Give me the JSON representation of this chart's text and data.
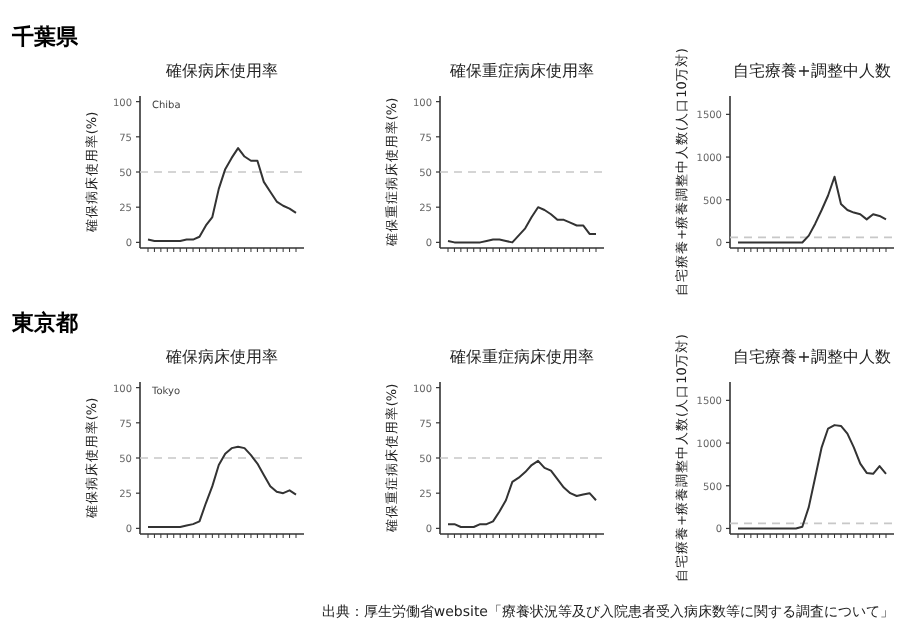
{
  "chart_data": [
    {
      "type": "line",
      "title": "千葉県",
      "subtitle": "確保病床使用率",
      "ylabel": "確保病床使用率(%)",
      "annotations": [
        "Chiba"
      ],
      "categories": [
        null,
        null,
        null,
        null,
        null,
        null,
        null,
        null,
        null,
        null,
        null,
        null,
        null,
        null,
        null,
        null,
        null,
        null,
        null,
        null,
        null,
        null,
        null,
        null
      ],
      "series": [
        {
          "color": "#333333",
          "values": [
            2,
            1,
            1,
            1,
            1,
            1,
            2,
            2,
            4,
            12,
            18,
            38,
            52,
            60,
            67,
            61,
            58,
            58,
            43,
            36,
            29,
            26,
            24,
            21
          ]
        }
      ],
      "ylim": [
        -4,
        104
      ],
      "yticks": [
        0,
        25,
        50,
        75,
        100
      ],
      "ref_lines": [
        {
          "axis": "y",
          "value": 50,
          "color": "#c8c8c8",
          "line_style": "dashed"
        }
      ],
      "grid": false,
      "marker": "none",
      "line_style": "solid"
    },
    {
      "type": "line",
      "subtitle": "確保重症病床使用率",
      "ylabel": "確保重症病床使用率(%)",
      "categories": [
        null,
        null,
        null,
        null,
        null,
        null,
        null,
        null,
        null,
        null,
        null,
        null,
        null,
        null,
        null,
        null,
        null,
        null,
        null,
        null,
        null,
        null,
        null,
        null
      ],
      "series": [
        {
          "color": "#333333",
          "values": [
            1,
            0,
            0,
            0,
            0,
            0,
            1,
            2,
            2,
            1,
            0,
            5,
            10,
            18,
            25,
            23,
            20,
            16,
            16,
            14,
            12,
            12,
            6,
            6
          ]
        }
      ],
      "ylim": [
        -4,
        104
      ],
      "yticks": [
        0,
        25,
        50,
        75,
        100
      ],
      "ref_lines": [
        {
          "axis": "y",
          "value": 50,
          "color": "#c8c8c8",
          "line_style": "dashed"
        }
      ],
      "grid": false,
      "marker": "none",
      "line_style": "solid"
    },
    {
      "type": "line",
      "subtitle": "自宅療養+調整中人数",
      "ylabel": "自宅療養+療養調整中人数(人口10万対)",
      "categories": [
        null,
        null,
        null,
        null,
        null,
        null,
        null,
        null,
        null,
        null,
        null,
        null,
        null,
        null,
        null,
        null,
        null,
        null,
        null,
        null,
        null,
        null,
        null,
        null
      ],
      "series": [
        {
          "color": "#333333",
          "values": [
            0,
            0,
            0,
            0,
            0,
            0,
            0,
            0,
            0,
            0,
            0,
            80,
            220,
            380,
            550,
            770,
            450,
            380,
            350,
            330,
            270,
            330,
            310,
            270
          ]
        }
      ],
      "ylim": [
        -65,
        1715
      ],
      "yticks": [
        0,
        500,
        1000,
        1500
      ],
      "ref_lines": [
        {
          "axis": "y",
          "value": 60,
          "color": "#c8c8c8",
          "line_style": "dashed"
        }
      ],
      "grid": false,
      "marker": "none",
      "line_style": "solid"
    },
    {
      "type": "line",
      "title": "東京都",
      "subtitle": "確保病床使用率",
      "ylabel": "確保病床使用率(%)",
      "annotations": [
        "Tokyo"
      ],
      "categories": [
        null,
        null,
        null,
        null,
        null,
        null,
        null,
        null,
        null,
        null,
        null,
        null,
        null,
        null,
        null,
        null,
        null,
        null,
        null,
        null,
        null,
        null,
        null,
        null
      ],
      "series": [
        {
          "color": "#333333",
          "values": [
            1,
            1,
            1,
            1,
            1,
            1,
            2,
            3,
            5,
            18,
            30,
            45,
            53,
            57,
            58,
            57,
            52,
            46,
            38,
            30,
            26,
            25,
            27,
            24
          ]
        }
      ],
      "ylim": [
        -4,
        104
      ],
      "yticks": [
        0,
        25,
        50,
        75,
        100
      ],
      "ref_lines": [
        {
          "axis": "y",
          "value": 50,
          "color": "#c8c8c8",
          "line_style": "dashed"
        }
      ],
      "grid": false,
      "marker": "none",
      "line_style": "solid"
    },
    {
      "type": "line",
      "subtitle": "確保重症病床使用率",
      "ylabel": "確保重症病床使用率(%)",
      "categories": [
        null,
        null,
        null,
        null,
        null,
        null,
        null,
        null,
        null,
        null,
        null,
        null,
        null,
        null,
        null,
        null,
        null,
        null,
        null,
        null,
        null,
        null,
        null,
        null
      ],
      "series": [
        {
          "color": "#333333",
          "values": [
            3,
            3,
            1,
            1,
            1,
            3,
            3,
            5,
            12,
            20,
            33,
            36,
            40,
            45,
            48,
            43,
            41,
            35,
            29,
            25,
            23,
            24,
            25,
            20
          ]
        }
      ],
      "ylim": [
        -4,
        104
      ],
      "yticks": [
        0,
        25,
        50,
        75,
        100
      ],
      "ref_lines": [
        {
          "axis": "y",
          "value": 50,
          "color": "#c8c8c8",
          "line_style": "dashed"
        }
      ],
      "grid": false,
      "marker": "none",
      "line_style": "solid"
    },
    {
      "type": "line",
      "subtitle": "自宅療養+調整中人数",
      "ylabel": "自宅療養+療養調整中人数(人口10万対)",
      "annotations": [
        "出典：厚生労働省website「療養状況等及び入院患者受入病床数等に関する調査について」"
      ],
      "categories": [
        null,
        null,
        null,
        null,
        null,
        null,
        null,
        null,
        null,
        null,
        null,
        null,
        null,
        null,
        null,
        null,
        null,
        null,
        null,
        null,
        null,
        null,
        null,
        null
      ],
      "series": [
        {
          "color": "#333333",
          "values": [
            0,
            0,
            0,
            0,
            0,
            0,
            0,
            0,
            0,
            0,
            20,
            250,
            600,
            950,
            1170,
            1210,
            1200,
            1110,
            950,
            760,
            650,
            640,
            730,
            640
          ]
        }
      ],
      "ylim": [
        -65,
        1715
      ],
      "yticks": [
        0,
        500,
        1000,
        1500
      ],
      "ref_lines": [
        {
          "axis": "y",
          "value": 60,
          "color": "#c8c8c8",
          "line_style": "dashed"
        }
      ],
      "grid": false,
      "marker": "none",
      "line_style": "solid"
    }
  ]
}
